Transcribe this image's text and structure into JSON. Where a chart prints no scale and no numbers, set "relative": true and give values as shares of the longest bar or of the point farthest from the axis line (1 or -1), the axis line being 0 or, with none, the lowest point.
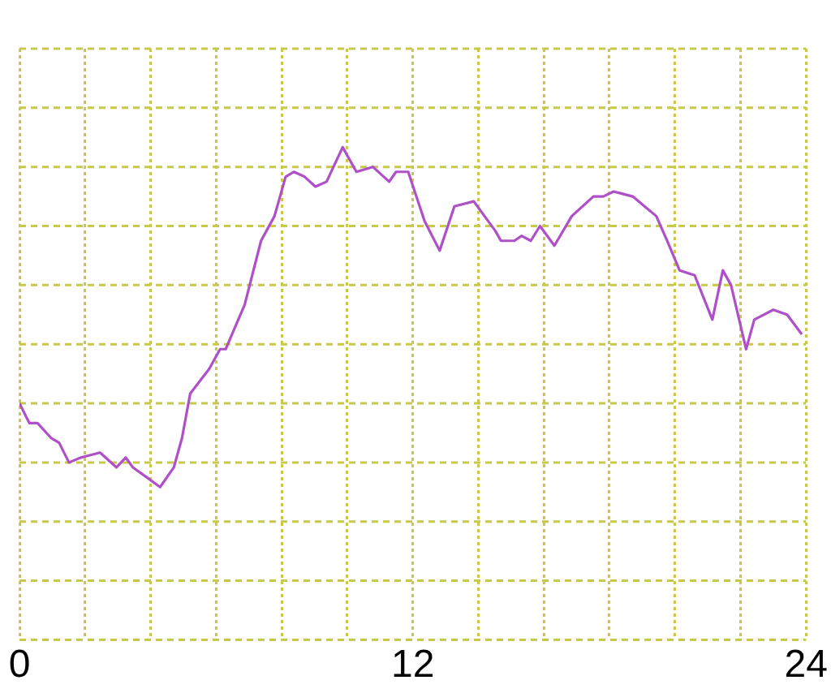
{
  "chart_data": {
    "type": "line",
    "relative": true,
    "color": "#b050c8",
    "grid": true,
    "marker": "none",
    "line_style": "solid",
    "xlim": [
      0,
      24
    ],
    "xticks": [
      0,
      {
        "value": 2,
        "label": null
      },
      {
        "value": 4,
        "label": null
      },
      {
        "value": 6,
        "label": null
      },
      {
        "value": 8,
        "label": null
      },
      {
        "value": 10,
        "label": null
      },
      12,
      {
        "value": 14,
        "label": null
      },
      {
        "value": 16,
        "label": null
      },
      {
        "value": 18,
        "label": null
      },
      {
        "value": 20,
        "label": null
      },
      {
        "value": 22,
        "label": null
      },
      24
    ],
    "x": [
      0,
      0.3,
      0.55,
      0.96,
      1.21,
      1.51,
      1.88,
      2.46,
      2.96,
      3.24,
      3.46,
      3.88,
      4.29,
      4.71,
      4.96,
      5.21,
      5.79,
      6.12,
      6.29,
      6.87,
      7.37,
      7.78,
      8.12,
      8.37,
      8.7,
      9.03,
      9.37,
      9.86,
      10.28,
      10.78,
      11.28,
      11.49,
      11.86,
      12.36,
      12.82,
      13.27,
      13.86,
      14.52,
      14.69,
      15.1,
      15.32,
      15.6,
      15.88,
      16.32,
      16.85,
      17.51,
      17.81,
      18.13,
      18.71,
      19.43,
      19.76,
      20.14,
      20.6,
      21.14,
      21.46,
      21.71,
      22.17,
      22.42,
      23.0,
      23.42,
      23.87
    ],
    "values": [
      0.48,
      0.44,
      0.44,
      0.41,
      0.4,
      0.36,
      0.37,
      0.38,
      0.35,
      0.37,
      0.35,
      0.33,
      0.31,
      0.35,
      0.41,
      0.5,
      0.55,
      0.59,
      0.59,
      0.68,
      0.81,
      0.86,
      0.94,
      0.95,
      0.94,
      0.92,
      0.93,
      1,
      0.95,
      0.96,
      0.93,
      0.95,
      0.95,
      0.85,
      0.79,
      0.88,
      0.89,
      0.83,
      0.81,
      0.81,
      0.82,
      0.81,
      0.84,
      0.8,
      0.86,
      0.9,
      0.9,
      0.91,
      0.9,
      0.86,
      0.81,
      0.75,
      0.74,
      0.65,
      0.75,
      0.72,
      0.59,
      0.65,
      0.67,
      0.66,
      0.62
    ]
  }
}
